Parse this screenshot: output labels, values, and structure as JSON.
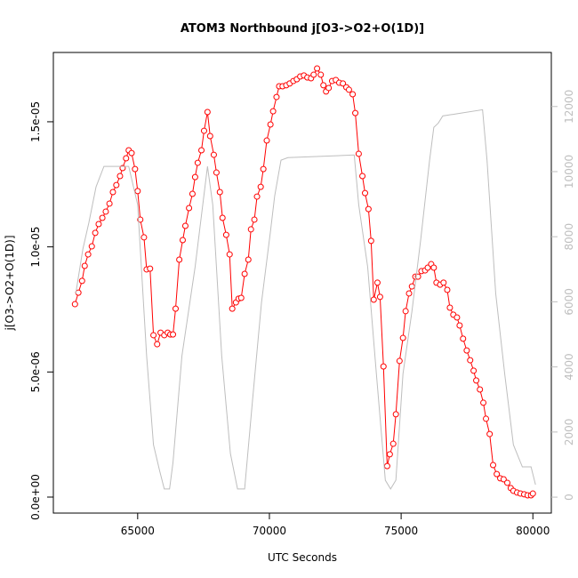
{
  "chart_data": {
    "type": "line",
    "title": "ATOM3 Northbound j[O3->O2+O(1D)]",
    "x_label": "UTC Seconds",
    "y_label": "j[O3->O2+O(1D)]",
    "xlim": [
      61800,
      80700
    ],
    "xticks": [
      65000,
      70000,
      75000,
      80000
    ],
    "ylim": [
      -6.4e-07,
      1.777e-05
    ],
    "yticks": [
      {
        "value": 0,
        "label": "0.0e+00"
      },
      {
        "value": 5e-06,
        "label": "5.0e-06"
      },
      {
        "value": 1e-05,
        "label": "1.0e-05"
      },
      {
        "value": 1.5e-05,
        "label": "1.5e-05"
      }
    ],
    "y2lim": [
      -490,
      13660
    ],
    "y2ticks": [
      0,
      2000,
      4000,
      6000,
      8000,
      10000,
      12000
    ],
    "series": [
      {
        "color": "#ff0000",
        "markers": true,
        "x": [
          62620,
          62750,
          62890,
          62990,
          63120,
          63260,
          63390,
          63520,
          63660,
          63790,
          63930,
          64060,
          64190,
          64330,
          64430,
          64560,
          64660,
          64770,
          64900,
          65000,
          65100,
          65240,
          65340,
          65470,
          65600,
          65740,
          65870,
          66010,
          66140,
          66240,
          66340,
          66440,
          66580,
          66710,
          66810,
          66950,
          67080,
          67180,
          67280,
          67420,
          67520,
          67650,
          67750,
          67890,
          67990,
          68120,
          68220,
          68360,
          68490,
          68590,
          68730,
          68830,
          68930,
          69060,
          69200,
          69300,
          69430,
          69530,
          69670,
          69770,
          69900,
          70040,
          70140,
          70270,
          70370,
          70500,
          70640,
          70770,
          70910,
          71040,
          71170,
          71310,
          71440,
          71580,
          71680,
          71810,
          71950,
          72050,
          72150,
          72250,
          72380,
          72520,
          72650,
          72790,
          72920,
          73020,
          73160,
          73260,
          73390,
          73530,
          73630,
          73760,
          73860,
          73960,
          74100,
          74200,
          74330,
          74470,
          74570,
          74700,
          74800,
          74940,
          75070,
          75170,
          75300,
          75410,
          75540,
          75640,
          75770,
          75910,
          76010,
          76140,
          76240,
          76340,
          76480,
          76610,
          76750,
          76850,
          76980,
          77120,
          77220,
          77350,
          77490,
          77620,
          77750,
          77850,
          77990,
          78120,
          78220,
          78360,
          78490,
          78630,
          78760,
          78890,
          79030,
          79160,
          79260,
          79400,
          79530,
          79670,
          79800,
          79930,
          80000
        ],
        "values": [
          7.71e-06,
          8.17e-06,
          8.64e-06,
          9.24e-06,
          9.7e-06,
          1.002e-05,
          1.056e-05,
          1.091e-05,
          1.116e-05,
          1.141e-05,
          1.173e-05,
          1.219e-05,
          1.247e-05,
          1.283e-05,
          1.315e-05,
          1.354e-05,
          1.386e-05,
          1.375e-05,
          1.311e-05,
          1.223e-05,
          1.109e-05,
          1.038e-05,
          9.1e-06,
          9.13e-06,
          6.47e-06,
          6.11e-06,
          6.57e-06,
          6.47e-06,
          6.57e-06,
          6.5e-06,
          6.5e-06,
          7.53e-06,
          9.49e-06,
          1.027e-05,
          1.084e-05,
          1.155e-05,
          1.212e-05,
          1.279e-05,
          1.336e-05,
          1.386e-05,
          1.464e-05,
          1.539e-05,
          1.443e-05,
          1.368e-05,
          1.297e-05,
          1.219e-05,
          1.116e-05,
          1.048e-05,
          9.7e-06,
          7.53e-06,
          7.78e-06,
          7.93e-06,
          7.96e-06,
          8.92e-06,
          9.49e-06,
          1.07e-05,
          1.109e-05,
          1.201e-05,
          1.24e-05,
          1.311e-05,
          1.425e-05,
          1.489e-05,
          1.542e-05,
          1.599e-05,
          1.642e-05,
          1.642e-05,
          1.646e-05,
          1.653e-05,
          1.663e-05,
          1.67e-05,
          1.681e-05,
          1.685e-05,
          1.677e-05,
          1.674e-05,
          1.688e-05,
          1.713e-05,
          1.688e-05,
          1.646e-05,
          1.621e-05,
          1.635e-05,
          1.663e-05,
          1.667e-05,
          1.656e-05,
          1.653e-05,
          1.638e-05,
          1.628e-05,
          1.61e-05,
          1.535e-05,
          1.372e-05,
          1.283e-05,
          1.215e-05,
          1.151e-05,
          1.024e-05,
          7.89e-06,
          8.57e-06,
          8e-06,
          5.22e-06,
          1.24e-06,
          1.71e-06,
          2.13e-06,
          3.31e-06,
          5.44e-06,
          6.36e-06,
          7.43e-06,
          8.14e-06,
          8.42e-06,
          8.81e-06,
          8.81e-06,
          9.03e-06,
          9.06e-06,
          9.17e-06,
          9.31e-06,
          9.17e-06,
          8.57e-06,
          8.49e-06,
          8.57e-06,
          8.28e-06,
          7.57e-06,
          7.29e-06,
          7.18e-06,
          6.86e-06,
          6.33e-06,
          5.86e-06,
          5.47e-06,
          5.05e-06,
          4.66e-06,
          4.3e-06,
          3.77e-06,
          3.13e-06,
          2.52e-06,
          1.28e-06,
          9.2e-07,
          7.5e-07,
          7.1e-07,
          5.7e-07,
          3.6e-07,
          2.5e-07,
          1.8e-07,
          1.4e-07,
          1.1e-07,
          7e-08,
          7e-08,
          1.4e-07
        ]
      },
      {
        "color": "#bebebe",
        "axis": "y2",
        "markers": false,
        "x": [
          62650,
          62920,
          63150,
          63420,
          63720,
          64660,
          65000,
          65340,
          65600,
          65840,
          66010,
          66210,
          66340,
          66680,
          67180,
          67650,
          67850,
          68190,
          68520,
          68790,
          69060,
          69360,
          69700,
          70040,
          70200,
          70440,
          70700,
          73220,
          73390,
          73730,
          74060,
          74400,
          74600,
          74800,
          75070,
          75410,
          75740,
          76080,
          76240,
          76410,
          76580,
          78090,
          78260,
          78590,
          78930,
          79260,
          79600,
          79930,
          80100
        ],
        "values": [
          6250,
          7620,
          8440,
          9530,
          10160,
          10160,
          8980,
          4340,
          1610,
          790,
          250,
          250,
          1060,
          4340,
          7070,
          10160,
          8980,
          4340,
          1340,
          250,
          250,
          2980,
          5980,
          8160,
          9250,
          10350,
          10430,
          10510,
          8980,
          7070,
          3790,
          520,
          250,
          520,
          3790,
          5710,
          7890,
          10350,
          11360,
          11490,
          11710,
          11900,
          10350,
          6250,
          3790,
          1610,
          930,
          930,
          380
        ]
      }
    ]
  }
}
